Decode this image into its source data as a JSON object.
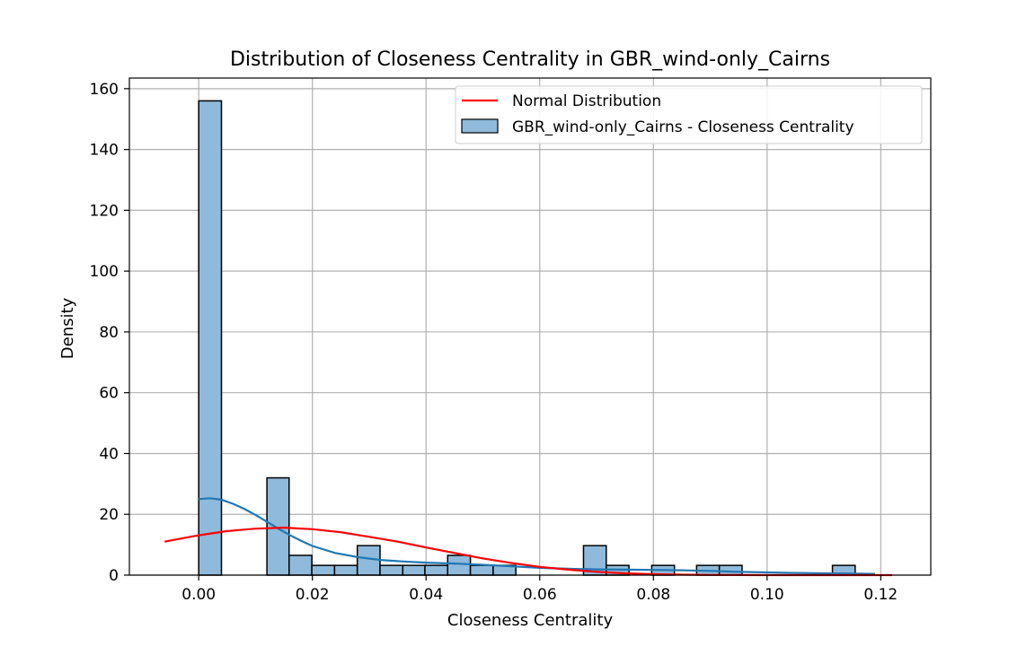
{
  "chart_data": {
    "type": "bar",
    "title": "Distribution of Closeness Centrality in GBR_wind-only_Cairns",
    "xlabel": "Closeness Centrality",
    "ylabel": "Density",
    "xlim": [
      -0.0122,
      0.1288
    ],
    "ylim": [
      0,
      163.5
    ],
    "x_ticks": [
      0.0,
      0.02,
      0.04,
      0.06,
      0.08,
      0.1,
      0.12
    ],
    "x_tick_labels": [
      "0.00",
      "0.02",
      "0.04",
      "0.06",
      "0.08",
      "0.10",
      "0.12"
    ],
    "y_ticks": [
      0,
      20,
      40,
      60,
      80,
      100,
      120,
      140,
      160
    ],
    "y_tick_labels": [
      "0",
      "20",
      "40",
      "60",
      "80",
      "100",
      "120",
      "140",
      "160"
    ],
    "grid": true,
    "legend_position": "top-right",
    "histogram": {
      "name": "GBR_wind-only_Cairns - Closeness Centrality",
      "color": "#8fbadb",
      "edge_color": "#000000",
      "bins": [
        {
          "x0": 0.0,
          "x1": 0.004,
          "value": 156
        },
        {
          "x0": 0.004,
          "x1": 0.008,
          "value": 0
        },
        {
          "x0": 0.008,
          "x1": 0.012,
          "value": 0
        },
        {
          "x0": 0.012,
          "x1": 0.0159,
          "value": 32
        },
        {
          "x0": 0.0159,
          "x1": 0.0199,
          "value": 6.5
        },
        {
          "x0": 0.0199,
          "x1": 0.0239,
          "value": 3.2
        },
        {
          "x0": 0.0239,
          "x1": 0.0279,
          "value": 3.2
        },
        {
          "x0": 0.0279,
          "x1": 0.0319,
          "value": 9.7
        },
        {
          "x0": 0.0319,
          "x1": 0.0359,
          "value": 3.2
        },
        {
          "x0": 0.0359,
          "x1": 0.0398,
          "value": 3.2
        },
        {
          "x0": 0.0398,
          "x1": 0.0438,
          "value": 3.2
        },
        {
          "x0": 0.0438,
          "x1": 0.0478,
          "value": 6.5
        },
        {
          "x0": 0.0478,
          "x1": 0.0518,
          "value": 3.2
        },
        {
          "x0": 0.0518,
          "x1": 0.0558,
          "value": 3.2
        },
        {
          "x0": 0.0558,
          "x1": 0.0598,
          "value": 0
        },
        {
          "x0": 0.0598,
          "x1": 0.0637,
          "value": 0
        },
        {
          "x0": 0.0637,
          "x1": 0.0677,
          "value": 0
        },
        {
          "x0": 0.0677,
          "x1": 0.0717,
          "value": 9.7
        },
        {
          "x0": 0.0717,
          "x1": 0.0757,
          "value": 3.2
        },
        {
          "x0": 0.0757,
          "x1": 0.0797,
          "value": 0
        },
        {
          "x0": 0.0797,
          "x1": 0.0837,
          "value": 3.2
        },
        {
          "x0": 0.0837,
          "x1": 0.0876,
          "value": 0
        },
        {
          "x0": 0.0876,
          "x1": 0.0916,
          "value": 3.2
        },
        {
          "x0": 0.0916,
          "x1": 0.0956,
          "value": 3.2
        },
        {
          "x0": 0.0956,
          "x1": 0.0996,
          "value": 0
        },
        {
          "x0": 0.0996,
          "x1": 0.1036,
          "value": 0
        },
        {
          "x0": 0.1036,
          "x1": 0.1076,
          "value": 0
        },
        {
          "x0": 0.1076,
          "x1": 0.1115,
          "value": 0
        },
        {
          "x0": 0.1115,
          "x1": 0.1155,
          "value": 3.2
        },
        {
          "x0": 0.1155,
          "x1": 0.1195,
          "value": 0
        }
      ]
    },
    "kde": {
      "color": "#1f77b4",
      "x": [
        0.0,
        0.002,
        0.004,
        0.006,
        0.008,
        0.01,
        0.012,
        0.014,
        0.016,
        0.018,
        0.02,
        0.024,
        0.028,
        0.032,
        0.036,
        0.04,
        0.045,
        0.05,
        0.055,
        0.06,
        0.065,
        0.07,
        0.075,
        0.08,
        0.085,
        0.09,
        0.095,
        0.1,
        0.105,
        0.11,
        0.115,
        0.119
      ],
      "y": [
        25,
        25.3,
        24.8,
        23.5,
        21.8,
        19.8,
        17.6,
        15.3,
        13.2,
        11.3,
        9.6,
        7.3,
        5.9,
        5.0,
        4.5,
        4.1,
        3.8,
        3.4,
        2.9,
        2.4,
        2.1,
        1.9,
        1.8,
        1.7,
        1.6,
        1.4,
        1.1,
        0.9,
        0.7,
        0.6,
        0.5,
        0.4
      ]
    },
    "series": [
      {
        "name": "Normal Distribution",
        "color": "#ff0000",
        "x": [
          -0.006,
          0.0,
          0.005,
          0.01,
          0.015,
          0.02,
          0.025,
          0.03,
          0.035,
          0.04,
          0.045,
          0.05,
          0.055,
          0.06,
          0.065,
          0.07,
          0.075,
          0.08,
          0.085,
          0.09,
          0.095,
          0.1,
          0.105,
          0.11,
          0.115,
          0.12,
          0.122
        ],
        "y": [
          11.0,
          13.1,
          14.5,
          15.3,
          15.6,
          15.1,
          14.1,
          12.6,
          11.0,
          9.1,
          7.3,
          5.5,
          4.0,
          2.7,
          1.8,
          1.1,
          0.6,
          0.3,
          0.15,
          0.07,
          0.03,
          0.01,
          0.0,
          0.0,
          0.0,
          0.0,
          0.0
        ]
      }
    ]
  }
}
